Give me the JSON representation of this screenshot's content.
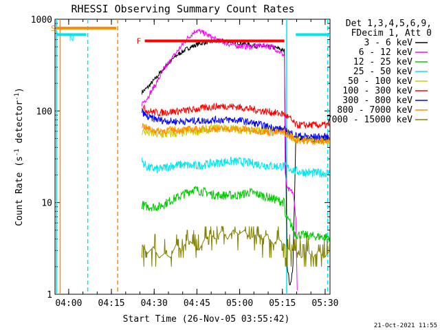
{
  "chart_data": {
    "type": "line",
    "title": "RHESSI Observing Summary Count Rates",
    "xlabel": "Start Time (26-Nov-05 03:55:42)",
    "ylabel_main": "Count Rate (s",
    "ylabel_sup1": "-1",
    "ylabel_mid": " detector",
    "ylabel_sup2": "-1",
    "ylabel_end": ")",
    "y_scale": "log",
    "ylim": [
      1,
      1000
    ],
    "xlim_minutes": [
      -0.5,
      96
    ],
    "x_ticks": [
      {
        "m": 4.3,
        "label": "04:00"
      },
      {
        "m": 19.3,
        "label": "04:15"
      },
      {
        "m": 34.3,
        "label": "04:30"
      },
      {
        "m": 49.3,
        "label": "04:45"
      },
      {
        "m": 64.3,
        "label": "05:00"
      },
      {
        "m": 79.3,
        "label": "05:15"
      },
      {
        "m": 94.3,
        "label": "05:30"
      }
    ],
    "y_ticks": [
      {
        "v": 1,
        "label": "1"
      },
      {
        "v": 10,
        "label": "10"
      },
      {
        "v": 100,
        "label": "100"
      },
      {
        "v": 1000,
        "label": "1000"
      }
    ],
    "legend_header": [
      "Det 1,3,4,5,6,9,",
      "FDecim 1, Att 0"
    ],
    "legend_placement": "right",
    "series": [
      {
        "name": "3 - 6 keV",
        "color": "#000000",
        "points": [
          [
            30,
            160
          ],
          [
            32,
            180
          ],
          [
            35,
            230
          ],
          [
            38,
            300
          ],
          [
            42,
            400
          ],
          [
            46,
            480
          ],
          [
            50,
            540
          ],
          [
            54,
            570
          ],
          [
            58,
            580
          ],
          [
            62,
            570
          ],
          [
            66,
            540
          ],
          [
            70,
            510
          ],
          [
            74,
            500
          ],
          [
            78,
            480
          ],
          [
            80,
            450
          ],
          [
            80.3,
            70
          ],
          [
            81,
            2
          ],
          [
            82,
            1.2
          ],
          [
            83,
            2
          ],
          [
            84,
            50
          ],
          [
            90,
            48
          ],
          [
            96,
            47
          ]
        ]
      },
      {
        "name": "6 - 12 keV",
        "color": "#ff00ff",
        "points": [
          [
            30,
            120
          ],
          [
            32,
            140
          ],
          [
            35,
            200
          ],
          [
            38,
            290
          ],
          [
            42,
            430
          ],
          [
            46,
            620
          ],
          [
            49,
            760
          ],
          [
            52,
            700
          ],
          [
            56,
            600
          ],
          [
            60,
            540
          ],
          [
            64,
            510
          ],
          [
            68,
            500
          ],
          [
            72,
            520
          ],
          [
            76,
            500
          ],
          [
            80,
            400
          ],
          [
            80.3,
            20
          ],
          [
            81,
            14
          ],
          [
            83,
            13
          ],
          [
            84,
            7
          ],
          [
            84.5,
            1.1
          ]
        ]
      },
      {
        "name": "12 - 25 keV",
        "color": "#00cc00",
        "points": [
          [
            30,
            9.5
          ],
          [
            32,
            9
          ],
          [
            36,
            9
          ],
          [
            40,
            10.5
          ],
          [
            44,
            12
          ],
          [
            48,
            14
          ],
          [
            52,
            13
          ],
          [
            56,
            12
          ],
          [
            60,
            12
          ],
          [
            64,
            12
          ],
          [
            68,
            13
          ],
          [
            72,
            12
          ],
          [
            76,
            11
          ],
          [
            80,
            10
          ],
          [
            80.3,
            7
          ],
          [
            82,
            6
          ],
          [
            84,
            4.5
          ],
          [
            90,
            4.3
          ],
          [
            96,
            4.2
          ]
        ]
      },
      {
        "name": "25 - 50 keV",
        "color": "#00e5ee",
        "points": [
          [
            30,
            28
          ],
          [
            32,
            24
          ],
          [
            36,
            23
          ],
          [
            40,
            25
          ],
          [
            44,
            26
          ],
          [
            48,
            25
          ],
          [
            52,
            26
          ],
          [
            56,
            27
          ],
          [
            60,
            28
          ],
          [
            64,
            28
          ],
          [
            68,
            27
          ],
          [
            72,
            26
          ],
          [
            76,
            25
          ],
          [
            80,
            25
          ],
          [
            84,
            22
          ],
          [
            90,
            21
          ],
          [
            96,
            21
          ]
        ]
      },
      {
        "name": "50 - 100 keV",
        "color": "#cccc00",
        "points": [
          [
            30,
            60
          ],
          [
            32,
            58
          ],
          [
            36,
            55
          ],
          [
            40,
            56
          ],
          [
            44,
            58
          ],
          [
            48,
            60
          ],
          [
            52,
            62
          ],
          [
            56,
            65
          ],
          [
            60,
            64
          ],
          [
            64,
            63
          ],
          [
            68,
            62
          ],
          [
            72,
            61
          ],
          [
            76,
            60
          ],
          [
            80,
            60
          ],
          [
            84,
            49
          ],
          [
            90,
            48
          ],
          [
            96,
            48
          ]
        ]
      },
      {
        "name": "100 - 300 keV",
        "color": "#ff0000",
        "points": [
          [
            30,
            110
          ],
          [
            32,
            100
          ],
          [
            36,
            95
          ],
          [
            40,
            98
          ],
          [
            44,
            100
          ],
          [
            48,
            103
          ],
          [
            52,
            108
          ],
          [
            56,
            112
          ],
          [
            60,
            113
          ],
          [
            64,
            110
          ],
          [
            68,
            105
          ],
          [
            72,
            100
          ],
          [
            76,
            96
          ],
          [
            80,
            92
          ],
          [
            82,
            82
          ],
          [
            84,
            70
          ],
          [
            90,
            70
          ],
          [
            96,
            70
          ]
        ]
      },
      {
        "name": "300 - 800 keV",
        "color": "#0000ff",
        "points": [
          [
            30,
            98
          ],
          [
            32,
            85
          ],
          [
            36,
            80
          ],
          [
            40,
            77
          ],
          [
            44,
            77
          ],
          [
            48,
            78
          ],
          [
            52,
            78
          ],
          [
            56,
            80
          ],
          [
            60,
            80
          ],
          [
            64,
            79
          ],
          [
            68,
            75
          ],
          [
            72,
            70
          ],
          [
            76,
            66
          ],
          [
            80,
            62
          ],
          [
            84,
            54
          ],
          [
            90,
            52
          ],
          [
            96,
            52
          ]
        ]
      },
      {
        "name": "800 - 7000 keV",
        "color": "#ff8c00",
        "points": [
          [
            30,
            70
          ],
          [
            32,
            64
          ],
          [
            36,
            60
          ],
          [
            40,
            62
          ],
          [
            44,
            62
          ],
          [
            48,
            63
          ],
          [
            52,
            63
          ],
          [
            56,
            64
          ],
          [
            60,
            64
          ],
          [
            64,
            63
          ],
          [
            68,
            62
          ],
          [
            72,
            60
          ],
          [
            76,
            58
          ],
          [
            80,
            58
          ],
          [
            84,
            48
          ],
          [
            90,
            47
          ],
          [
            96,
            46
          ]
        ]
      },
      {
        "name": "7000 - 15000 keV",
        "color": "#808000",
        "points": [
          [
            30,
            3.5
          ],
          [
            32,
            2.8
          ],
          [
            34,
            3.3
          ],
          [
            36,
            2.5
          ],
          [
            38,
            2.8
          ],
          [
            40,
            2.5
          ],
          [
            42,
            3.5
          ],
          [
            44,
            3
          ],
          [
            46,
            4
          ],
          [
            48,
            3.5
          ],
          [
            50,
            3
          ],
          [
            52,
            4
          ],
          [
            54,
            4.5
          ],
          [
            56,
            4
          ],
          [
            58,
            5
          ],
          [
            60,
            4
          ],
          [
            62,
            5
          ],
          [
            64,
            4.5
          ],
          [
            66,
            5
          ],
          [
            68,
            4
          ],
          [
            70,
            4.5
          ],
          [
            72,
            4
          ],
          [
            74,
            4.5
          ],
          [
            76,
            3.5
          ],
          [
            78,
            4
          ],
          [
            80,
            3.5
          ],
          [
            82,
            3
          ],
          [
            84,
            3
          ],
          [
            86,
            2.5
          ],
          [
            88,
            3
          ],
          [
            90,
            2.5
          ],
          [
            92,
            3
          ],
          [
            94,
            2.5
          ],
          [
            96,
            3
          ]
        ]
      }
    ],
    "annotations": [
      {
        "label": "S",
        "color": "#ff8c00",
        "m_start": 0,
        "m_end": 21,
        "v": 800
      },
      {
        "label": "N",
        "color": "#00e5ee",
        "m_start": 0,
        "m_end": 10.5,
        "v": 680
      },
      {
        "label": "N",
        "color": "#00e5ee",
        "m_start": 84,
        "m_end": 96,
        "v": 680
      },
      {
        "label": "F",
        "color": "#ff0000",
        "m_start": 31,
        "m_end": 80,
        "v": 580
      }
    ],
    "vlines": [
      {
        "m": 0,
        "color": "#00e5ee",
        "dashed": false
      },
      {
        "m": 1.3,
        "color": "#ff8c00",
        "dashed": false
      },
      {
        "m": 11,
        "color": "#00e5ee",
        "dashed": true
      },
      {
        "m": 21.5,
        "color": "#ff8c00",
        "dashed": true
      },
      {
        "m": 80.8,
        "color": "#00e5ee",
        "dashed": false
      },
      {
        "m": 95.2,
        "color": "#00e5ee",
        "dashed": true
      }
    ],
    "timestamp": "21-Oct-2021 11:55"
  }
}
